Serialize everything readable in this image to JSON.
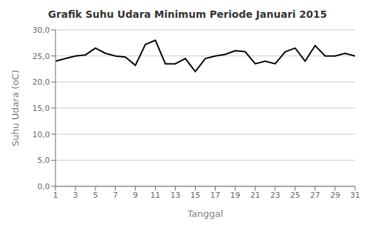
{
  "chart_data": {
    "type": "line",
    "title": "Grafik Suhu Udara Minimum Periode Januari 2015",
    "x_label": "Tanggal",
    "y_label": "Suhu Udara (oC)",
    "x": [
      1,
      2,
      3,
      4,
      5,
      6,
      7,
      8,
      9,
      10,
      11,
      12,
      13,
      14,
      15,
      16,
      17,
      18,
      19,
      20,
      21,
      22,
      23,
      24,
      25,
      26,
      27,
      28,
      29,
      30,
      31
    ],
    "values": [
      24.0,
      24.5,
      25.0,
      25.2,
      26.5,
      25.5,
      25.0,
      24.8,
      23.2,
      27.2,
      28.0,
      23.5,
      23.5,
      24.5,
      22.0,
      24.5,
      25.0,
      25.3,
      26.0,
      25.8,
      23.5,
      24.0,
      23.5,
      25.8,
      26.5,
      24.0,
      27.0,
      25.0,
      25.0,
      25.5,
      25.0
    ],
    "color": "#000000",
    "xlim": [
      1,
      31
    ],
    "xticks": [
      1,
      3,
      5,
      7,
      9,
      11,
      13,
      15,
      17,
      19,
      21,
      23,
      25,
      27,
      29,
      31
    ],
    "ylim": [
      0,
      30
    ],
    "yticks": [
      {
        "value": 0,
        "label": "0,0"
      },
      {
        "value": 5,
        "label": "5,0"
      },
      {
        "value": 10,
        "label": "10,0"
      },
      {
        "value": 15,
        "label": "15,0"
      },
      {
        "value": 20,
        "label": "20,0"
      },
      {
        "value": 25,
        "label": "25,0"
      },
      {
        "value": 30,
        "label": "30,0"
      }
    ],
    "grid": true
  }
}
